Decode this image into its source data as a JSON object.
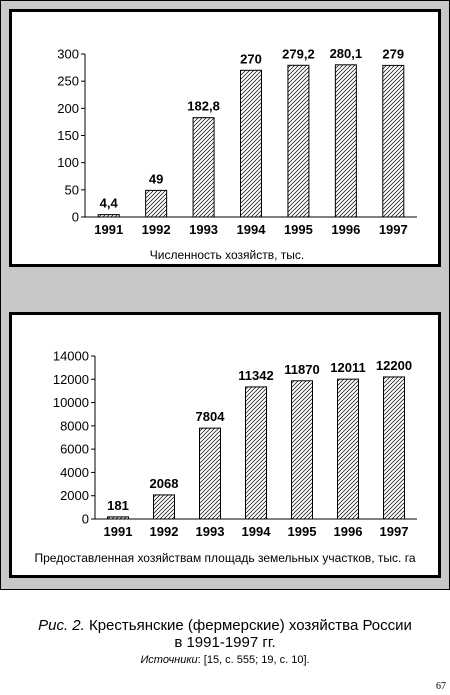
{
  "chart_data": [
    {
      "type": "bar",
      "categories": [
        "1991",
        "1992",
        "1993",
        "1994",
        "1995",
        "1996",
        "1997"
      ],
      "values": [
        4.4,
        49,
        182.8,
        270,
        279.2,
        280.1,
        279
      ],
      "data_labels": [
        "4,4",
        "49",
        "182,8",
        "270",
        "279,2",
        "280,1",
        "279"
      ],
      "y_ticks": [
        "0",
        "50",
        "100",
        "150",
        "200",
        "250",
        "300"
      ],
      "ylim": [
        0,
        300
      ],
      "xlabel": "Численность хозяйств, тыс.",
      "grid": false,
      "bar_fill": "hatched"
    },
    {
      "type": "bar",
      "categories": [
        "1991",
        "1992",
        "1993",
        "1994",
        "1995",
        "1996",
        "1997"
      ],
      "values": [
        181,
        2068,
        7804,
        11342,
        11870,
        12011,
        12200
      ],
      "data_labels": [
        "181",
        "2068",
        "7804",
        "11342",
        "11870",
        "12011",
        "12200"
      ],
      "y_ticks": [
        "0",
        "2000",
        "4000",
        "6000",
        "8000",
        "10000",
        "12000",
        "14000"
      ],
      "ylim": [
        0,
        14000
      ],
      "xlabel": "Предоставленная хозяйствам  площадь земельных участков, тыс. га",
      "grid": false,
      "bar_fill": "hatched"
    }
  ],
  "figure": {
    "label": "Рис. 2.",
    "title_line1": " Крестьянские (фермерские) хозяйства России",
    "title_line2": "в 1991-1997 гг.",
    "sources_label": "Источники",
    "sources_text": ": [15, с. 555; 19, с. 10]."
  },
  "page_number": "67"
}
